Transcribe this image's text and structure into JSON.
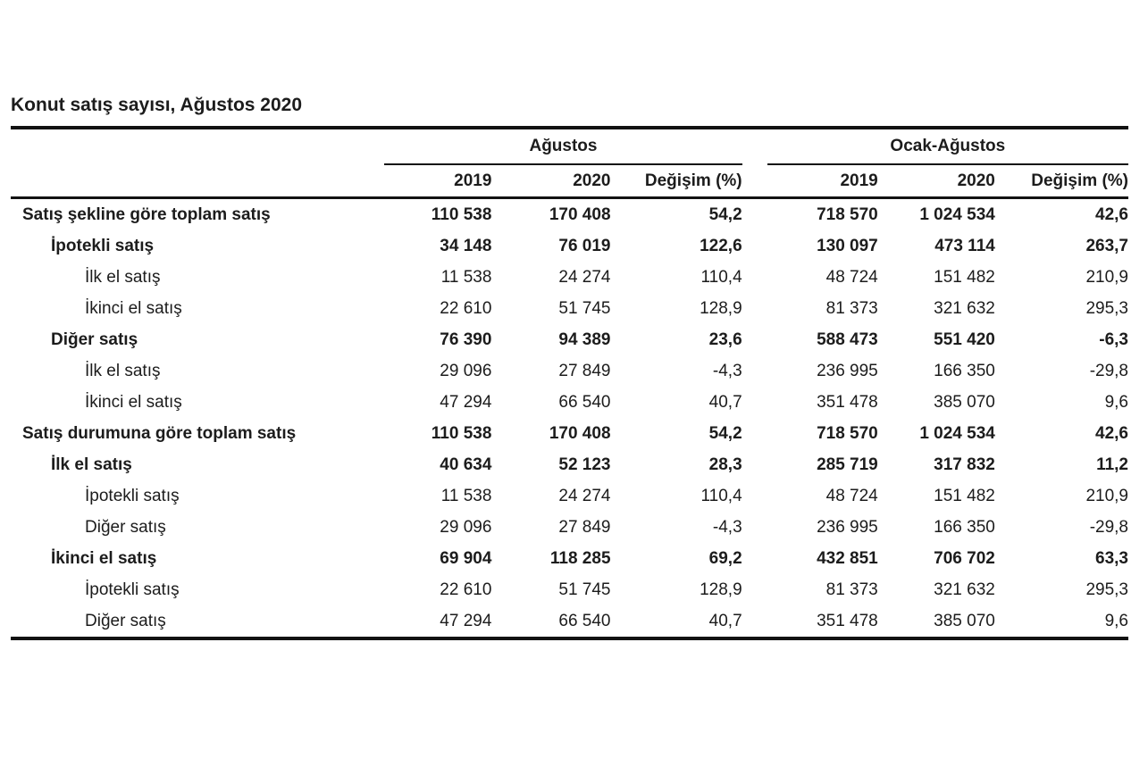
{
  "page_title": "Konut satış sayısı, Ağustos 2020",
  "table": {
    "column_groups": [
      {
        "label": "Ağustos",
        "columns": [
          "2019",
          "2020",
          "Değişim (%)"
        ]
      },
      {
        "label": "Ocak-Ağustos",
        "columns": [
          "2019",
          "2020",
          "Değişim (%)"
        ]
      }
    ],
    "rows": [
      {
        "label": "Satış şekline göre toplam satış",
        "indent": 0,
        "bold": true,
        "values": [
          "110 538",
          "170 408",
          "54,2",
          "718 570",
          "1 024 534",
          "42,6"
        ]
      },
      {
        "label": "İpotekli satış",
        "indent": 1,
        "bold": true,
        "values": [
          "34 148",
          "76 019",
          "122,6",
          "130 097",
          "473 114",
          "263,7"
        ]
      },
      {
        "label": "İlk el satış",
        "indent": 2,
        "bold": false,
        "values": [
          "11 538",
          "24 274",
          "110,4",
          "48 724",
          "151 482",
          "210,9"
        ]
      },
      {
        "label": "İkinci el satış",
        "indent": 2,
        "bold": false,
        "values": [
          "22 610",
          "51 745",
          "128,9",
          "81 373",
          "321 632",
          "295,3"
        ]
      },
      {
        "label": "Diğer satış",
        "indent": 1,
        "bold": true,
        "values": [
          "76 390",
          "94 389",
          "23,6",
          "588 473",
          "551 420",
          "-6,3"
        ]
      },
      {
        "label": "İlk el satış",
        "indent": 2,
        "bold": false,
        "values": [
          "29 096",
          "27 849",
          "-4,3",
          "236 995",
          "166 350",
          "-29,8"
        ]
      },
      {
        "label": "İkinci el satış",
        "indent": 2,
        "bold": false,
        "values": [
          "47 294",
          "66 540",
          "40,7",
          "351 478",
          "385 070",
          "9,6"
        ]
      },
      {
        "label": "Satış durumuna göre toplam satış",
        "indent": 0,
        "bold": true,
        "values": [
          "110 538",
          "170 408",
          "54,2",
          "718 570",
          "1 024 534",
          "42,6"
        ]
      },
      {
        "label": "İlk el satış",
        "indent": 1,
        "bold": true,
        "values": [
          "40 634",
          "52 123",
          "28,3",
          "285 719",
          "317 832",
          "11,2"
        ]
      },
      {
        "label": "İpotekli satış",
        "indent": 2,
        "bold": false,
        "values": [
          "11 538",
          "24 274",
          "110,4",
          "48 724",
          "151 482",
          "210,9"
        ]
      },
      {
        "label": "Diğer satış",
        "indent": 2,
        "bold": false,
        "values": [
          "29 096",
          "27 849",
          "-4,3",
          "236 995",
          "166 350",
          "-29,8"
        ]
      },
      {
        "label": "İkinci el satış",
        "indent": 1,
        "bold": true,
        "values": [
          "69 904",
          "118 285",
          "69,2",
          "432 851",
          "706 702",
          "63,3"
        ]
      },
      {
        "label": "İpotekli satış",
        "indent": 2,
        "bold": false,
        "values": [
          "22 610",
          "51 745",
          "128,9",
          "81 373",
          "321 632",
          "295,3"
        ]
      },
      {
        "label": "Diğer satış",
        "indent": 2,
        "bold": false,
        "values": [
          "47 294",
          "66 540",
          "40,7",
          "351 478",
          "385 070",
          "9,6"
        ]
      }
    ]
  },
  "colors": {
    "text": "#1c1c1c",
    "rule": "#121212",
    "background": "#ffffff"
  },
  "chart_data": {
    "type": "table",
    "title": "Konut satış sayısı, Ağustos 2020",
    "column_groups": [
      "Ağustos",
      "Ocak-Ağustos"
    ],
    "columns": [
      "Ağustos 2019",
      "Ağustos 2020",
      "Ağustos Değişim (%)",
      "Ocak-Ağustos 2019",
      "Ocak-Ağustos 2020",
      "Ocak-Ağustos Değişim (%)"
    ],
    "rows": [
      {
        "name": "Satış şekline göre toplam satış",
        "values": [
          110538,
          170408,
          54.2,
          718570,
          1024534,
          42.6
        ]
      },
      {
        "name": "İpotekli satış",
        "values": [
          34148,
          76019,
          122.6,
          130097,
          473114,
          263.7
        ]
      },
      {
        "name": "İlk el satış",
        "values": [
          11538,
          24274,
          110.4,
          48724,
          151482,
          210.9
        ]
      },
      {
        "name": "İkinci el satış",
        "values": [
          22610,
          51745,
          128.9,
          81373,
          321632,
          295.3
        ]
      },
      {
        "name": "Diğer satış",
        "values": [
          76390,
          94389,
          23.6,
          588473,
          551420,
          -6.3
        ]
      },
      {
        "name": "İlk el satış",
        "values": [
          29096,
          27849,
          -4.3,
          236995,
          166350,
          -29.8
        ]
      },
      {
        "name": "İkinci el satış",
        "values": [
          47294,
          66540,
          40.7,
          351478,
          385070,
          9.6
        ]
      },
      {
        "name": "Satış durumuna göre toplam satış",
        "values": [
          110538,
          170408,
          54.2,
          718570,
          1024534,
          42.6
        ]
      },
      {
        "name": "İlk el satış",
        "values": [
          40634,
          52123,
          28.3,
          285719,
          317832,
          11.2
        ]
      },
      {
        "name": "İpotekli satış",
        "values": [
          11538,
          24274,
          110.4,
          48724,
          151482,
          210.9
        ]
      },
      {
        "name": "Diğer satış",
        "values": [
          29096,
          27849,
          -4.3,
          236995,
          166350,
          -29.8
        ]
      },
      {
        "name": "İkinci el satış",
        "values": [
          69904,
          118285,
          69.2,
          432851,
          706702,
          63.3
        ]
      },
      {
        "name": "İpotekli satış",
        "values": [
          22610,
          51745,
          128.9,
          81373,
          321632,
          295.3
        ]
      },
      {
        "name": "Diğer satış",
        "values": [
          47294,
          66540,
          40.7,
          351478,
          385070,
          9.6
        ]
      }
    ]
  }
}
